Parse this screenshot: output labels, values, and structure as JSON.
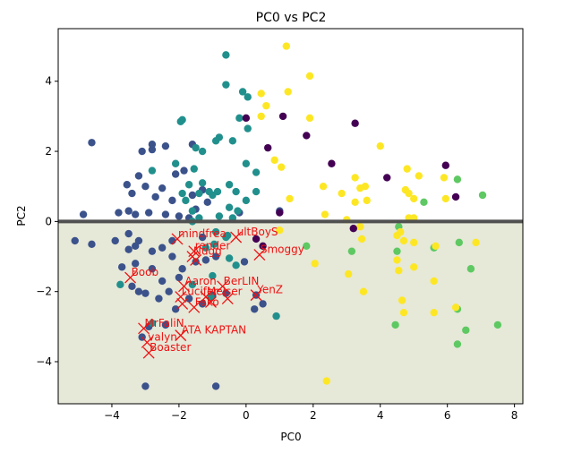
{
  "chart_data": {
    "type": "scatter",
    "title": "PC0 vs PC2",
    "xlabel": "PC0",
    "ylabel": "PC2",
    "xlim": [
      -5.6,
      8.25
    ],
    "ylim": [
      -5.2,
      5.5
    ],
    "xticks": [
      -4,
      -2,
      0,
      2,
      4,
      6,
      8
    ],
    "yticks": [
      -4,
      -2,
      0,
      2,
      4
    ],
    "grid": false,
    "hline": 0,
    "shaded_region": {
      "y_from": -5.2,
      "y_to": 0,
      "color": "#e6e8d8"
    },
    "hline_color": "#505050",
    "annotation_color": "#ee1111",
    "clusters": [
      {
        "color": "#3b528b",
        "points": [
          [
            -4.6,
            2.25
          ],
          [
            -2.8,
            2.2
          ],
          [
            -2.4,
            2.15
          ],
          [
            -2.8,
            2.05
          ],
          [
            -3.1,
            2.0
          ],
          [
            -1.6,
            2.2
          ],
          [
            -1.85,
            1.45
          ],
          [
            -3.2,
            1.3
          ],
          [
            -2.1,
            1.35
          ],
          [
            -3.55,
            1.05
          ],
          [
            -3.4,
            0.8
          ],
          [
            -3.0,
            1.0
          ],
          [
            -2.5,
            0.95
          ],
          [
            -2.7,
            0.7
          ],
          [
            -2.2,
            0.6
          ],
          [
            -1.6,
            0.75
          ],
          [
            -1.3,
            0.9
          ],
          [
            -1.15,
            0.55
          ],
          [
            -0.2,
            0.25
          ],
          [
            -1.5,
            0.35
          ],
          [
            -1.7,
            0.1
          ],
          [
            -2.0,
            0.15
          ],
          [
            -2.4,
            0.2
          ],
          [
            -2.9,
            0.25
          ],
          [
            -3.3,
            0.2
          ],
          [
            -3.5,
            0.3
          ],
          [
            -3.8,
            0.25
          ],
          [
            -4.85,
            0.2
          ],
          [
            -5.1,
            -0.55
          ],
          [
            -4.6,
            -0.65
          ],
          [
            -3.9,
            -0.55
          ],
          [
            -3.5,
            -0.8
          ],
          [
            -3.2,
            -0.55
          ],
          [
            -2.8,
            -0.85
          ],
          [
            -2.5,
            -0.75
          ],
          [
            -2.2,
            -1.0
          ],
          [
            -1.9,
            -1.35
          ],
          [
            -1.5,
            -1.15
          ],
          [
            -1.2,
            -1.1
          ],
          [
            -0.9,
            -1.0
          ],
          [
            -3.7,
            -1.3
          ],
          [
            -3.3,
            -1.2
          ],
          [
            -2.8,
            -1.35
          ],
          [
            -2.5,
            -1.7
          ],
          [
            -2.0,
            -1.6
          ],
          [
            -1.7,
            -2.2
          ],
          [
            -1.3,
            -2.35
          ],
          [
            -2.3,
            -2.0
          ],
          [
            -2.6,
            -2.2
          ],
          [
            -3.0,
            -2.05
          ],
          [
            -3.4,
            -1.85
          ],
          [
            -3.2,
            -2.0
          ],
          [
            -2.1,
            -2.5
          ],
          [
            -1.0,
            -2.1
          ],
          [
            -0.6,
            -2.05
          ],
          [
            0.3,
            -2.1
          ],
          [
            0.5,
            -2.35
          ],
          [
            0.25,
            -2.5
          ],
          [
            -2.4,
            -2.95
          ],
          [
            -2.9,
            -3.0
          ],
          [
            -3.1,
            -3.3
          ],
          [
            -3.0,
            -4.7
          ],
          [
            -0.9,
            -4.7
          ],
          [
            -3.3,
            -0.7
          ],
          [
            -3.5,
            -0.35
          ],
          [
            -0.05,
            -1.15
          ],
          [
            1.0,
            0.3
          ],
          [
            -2.2,
            -0.55
          ],
          [
            -1.3,
            -0.45
          ]
        ]
      },
      {
        "color": "#21908d",
        "points": [
          [
            -0.6,
            4.75
          ],
          [
            -0.1,
            3.7
          ],
          [
            -0.6,
            3.9
          ],
          [
            0.05,
            3.55
          ],
          [
            -1.9,
            2.9
          ],
          [
            -1.95,
            2.85
          ],
          [
            -0.8,
            2.4
          ],
          [
            -0.9,
            2.3
          ],
          [
            -0.4,
            2.3
          ],
          [
            -0.2,
            2.95
          ],
          [
            0.05,
            2.65
          ],
          [
            -1.5,
            2.1
          ],
          [
            -1.3,
            2.0
          ],
          [
            -2.8,
            1.45
          ],
          [
            -2.1,
            1.65
          ],
          [
            -1.55,
            1.5
          ],
          [
            -1.3,
            1.1
          ],
          [
            -1.7,
            1.05
          ],
          [
            -1.1,
            0.85
          ],
          [
            -0.3,
            0.85
          ],
          [
            0.0,
            1.65
          ],
          [
            0.3,
            1.4
          ],
          [
            0.3,
            0.85
          ],
          [
            -0.5,
            1.05
          ],
          [
            -1.9,
            0.8
          ],
          [
            -1.8,
            0.6
          ],
          [
            -1.4,
            0.8
          ],
          [
            -1.0,
            0.75
          ],
          [
            -0.8,
            0.15
          ],
          [
            -0.4,
            0.1
          ],
          [
            -1.4,
            0.1
          ],
          [
            -1.6,
            0.3
          ],
          [
            -0.9,
            -0.3
          ],
          [
            -0.6,
            -0.45
          ],
          [
            -0.95,
            -0.65
          ],
          [
            -1.2,
            -0.75
          ],
          [
            -0.5,
            -1.05
          ],
          [
            -0.3,
            -1.25
          ],
          [
            -3.75,
            -1.8
          ],
          [
            -1.6,
            -1.8
          ],
          [
            -1.0,
            -1.55
          ],
          [
            -2.8,
            -2.9
          ],
          [
            0.9,
            -2.7
          ],
          [
            -1.05,
            -2.15
          ],
          [
            -0.55,
            -0.4
          ],
          [
            -1.6,
            0.0
          ],
          [
            -0.85,
            0.85
          ],
          [
            -0.5,
            0.4
          ],
          [
            0.0,
            0.6
          ],
          [
            -0.25,
            0.3
          ]
        ]
      },
      {
        "color": "#5ec962",
        "points": [
          [
            1.8,
            -0.7
          ],
          [
            3.15,
            -0.85
          ],
          [
            4.5,
            -0.85
          ],
          [
            5.6,
            -0.75
          ],
          [
            6.35,
            -0.6
          ],
          [
            6.7,
            -1.35
          ],
          [
            6.3,
            -2.5
          ],
          [
            6.55,
            -3.1
          ],
          [
            6.3,
            -3.5
          ],
          [
            7.5,
            -2.95
          ],
          [
            4.45,
            -2.95
          ],
          [
            5.3,
            0.55
          ],
          [
            6.3,
            1.2
          ],
          [
            7.05,
            0.75
          ],
          [
            4.55,
            -0.15
          ]
        ]
      },
      {
        "color": "#fde725",
        "points": [
          [
            1.2,
            5.0
          ],
          [
            1.25,
            3.7
          ],
          [
            1.9,
            4.15
          ],
          [
            0.45,
            3.65
          ],
          [
            0.6,
            3.3
          ],
          [
            0.45,
            3.0
          ],
          [
            1.9,
            2.95
          ],
          [
            4.0,
            2.15
          ],
          [
            0.85,
            1.75
          ],
          [
            1.05,
            1.55
          ],
          [
            1.3,
            0.65
          ],
          [
            2.3,
            1.0
          ],
          [
            2.85,
            0.8
          ],
          [
            3.25,
            1.25
          ],
          [
            3.4,
            0.95
          ],
          [
            3.25,
            0.55
          ],
          [
            3.55,
            1.0
          ],
          [
            3.6,
            0.6
          ],
          [
            4.8,
            1.5
          ],
          [
            4.75,
            0.9
          ],
          [
            4.85,
            0.8
          ],
          [
            5.15,
            1.3
          ],
          [
            5.0,
            0.65
          ],
          [
            5.9,
            1.25
          ],
          [
            5.95,
            0.65
          ],
          [
            4.85,
            0.1
          ],
          [
            5.0,
            0.1
          ],
          [
            2.35,
            0.2
          ],
          [
            3.0,
            0.05
          ],
          [
            3.4,
            -0.15
          ],
          [
            3.45,
            -0.5
          ],
          [
            4.5,
            -0.4
          ],
          [
            4.6,
            -0.3
          ],
          [
            4.7,
            -0.55
          ],
          [
            5.0,
            -0.6
          ],
          [
            5.65,
            -0.7
          ],
          [
            6.85,
            -0.6
          ],
          [
            4.5,
            -1.1
          ],
          [
            4.55,
            -1.4
          ],
          [
            5.0,
            -1.3
          ],
          [
            5.6,
            -1.7
          ],
          [
            4.65,
            -2.25
          ],
          [
            4.7,
            -2.6
          ],
          [
            5.6,
            -2.6
          ],
          [
            6.25,
            -2.45
          ],
          [
            2.05,
            -1.2
          ],
          [
            3.05,
            -1.5
          ],
          [
            3.5,
            -2.0
          ],
          [
            2.4,
            -4.55
          ],
          [
            1.0,
            -0.25
          ]
        ]
      },
      {
        "color": "#440154",
        "points": [
          [
            0.0,
            2.95
          ],
          [
            1.1,
            3.0
          ],
          [
            0.65,
            2.1
          ],
          [
            1.8,
            2.45
          ],
          [
            2.55,
            1.65
          ],
          [
            3.25,
            2.8
          ],
          [
            4.2,
            1.25
          ],
          [
            5.95,
            1.6
          ],
          [
            6.25,
            0.7
          ],
          [
            1.0,
            0.25
          ],
          [
            0.5,
            -0.7
          ],
          [
            3.2,
            -0.2
          ],
          [
            0.3,
            -0.5
          ]
        ]
      }
    ],
    "annotations": [
      {
        "label": "mindfrea",
        "x": -2.05,
        "y": -0.5
      },
      {
        "label": "ultBoyS",
        "x": -0.3,
        "y": -0.45
      },
      {
        "label": "render",
        "x": -1.55,
        "y": -0.85
      },
      {
        "label": "Nugg",
        "x": -1.6,
        "y": -1.0
      },
      {
        "label": "Smoggy",
        "x": 0.4,
        "y": -0.95
      },
      {
        "label": "Boob",
        "x": -3.45,
        "y": -1.6
      },
      {
        "label": "Aaron",
        "x": -1.85,
        "y": -1.85
      },
      {
        "label": "BerLIN",
        "x": -0.7,
        "y": -1.85
      },
      {
        "label": "Lucifer",
        "x": -1.95,
        "y": -2.15
      },
      {
        "label": "Meiser",
        "x": -1.2,
        "y": -2.15
      },
      {
        "label": "YenZ",
        "x": 0.3,
        "y": -2.1
      },
      {
        "label": "Fako",
        "x": -1.55,
        "y": -2.45
      },
      {
        "label": "MrFaliN",
        "x": -3.05,
        "y": -3.05
      },
      {
        "label": "ATA KAPTAN",
        "x": -1.95,
        "y": -3.25
      },
      {
        "label": "valyn",
        "x": -2.95,
        "y": -3.45
      },
      {
        "label": "Boaster",
        "x": -2.9,
        "y": -3.75
      },
      {
        "label": "",
        "x": -1.5,
        "y": -1.1
      },
      {
        "label": "",
        "x": -1.9,
        "y": -2.35
      },
      {
        "label": "",
        "x": -1.05,
        "y": -2.3
      },
      {
        "label": "",
        "x": -0.55,
        "y": -2.2
      }
    ]
  }
}
